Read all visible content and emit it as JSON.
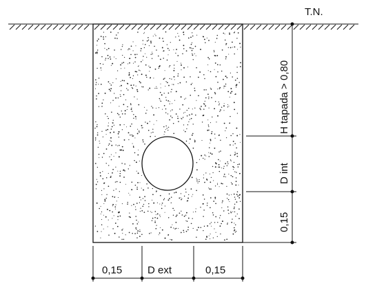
{
  "labels": {
    "terrain": "T.N.",
    "cover_height": "H tapada > 0,80",
    "internal_diameter": "D int",
    "bottom_bedding": "0,15",
    "side_left": "0,15",
    "external_diameter": "D ext",
    "side_right": "0,15"
  },
  "colors": {
    "line": "#111111",
    "fill_dots": "#222222",
    "background": "#ffffff"
  }
}
